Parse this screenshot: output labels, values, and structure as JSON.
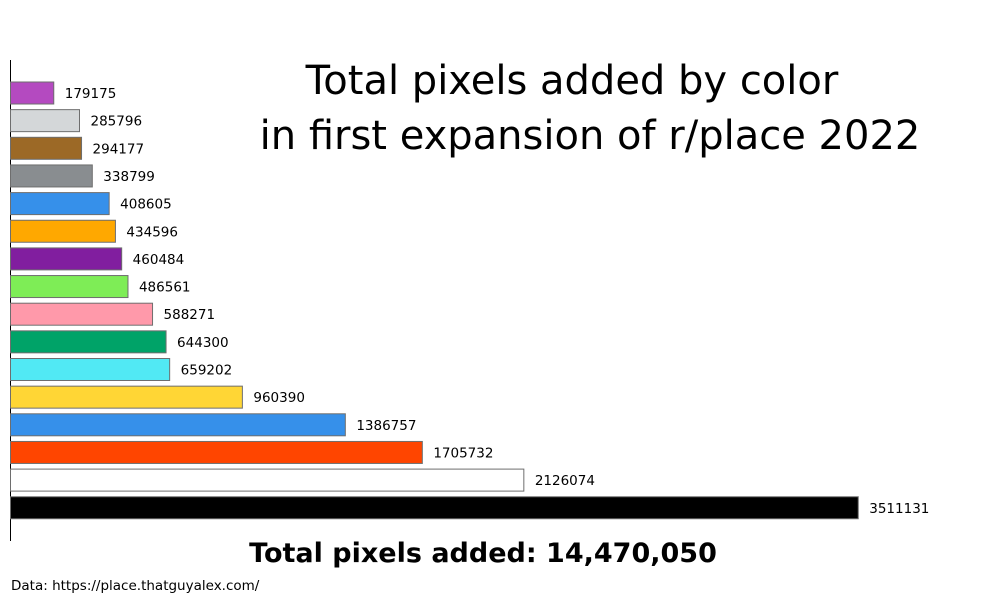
{
  "chart_data": {
    "type": "bar",
    "orientation": "horizontal",
    "title_lines": [
      "Total pixels added by color",
      "in first expansion of r/place 2022"
    ],
    "total_text": "Total pixels added: 14,470,050",
    "source": "Data: https://place.thatguyalex.com/",
    "xlim": [
      0,
      3800000
    ],
    "grid": false,
    "bars": [
      {
        "value": 179175,
        "label": "179175",
        "color": "#b44ac0"
      },
      {
        "value": 285796,
        "label": "285796",
        "color": "#d4d7d9"
      },
      {
        "value": 294177,
        "label": "294177",
        "color": "#9c6926"
      },
      {
        "value": 338799,
        "label": "338799",
        "color": "#898d90"
      },
      {
        "value": 408605,
        "label": "408605",
        "color": "#3690ea"
      },
      {
        "value": 434596,
        "label": "434596",
        "color": "#ffa800"
      },
      {
        "value": 460484,
        "label": "460484",
        "color": "#811e9f"
      },
      {
        "value": 486561,
        "label": "486561",
        "color": "#7eed56"
      },
      {
        "value": 588271,
        "label": "588271",
        "color": "#ff99aa"
      },
      {
        "value": 644300,
        "label": "644300",
        "color": "#00a368"
      },
      {
        "value": 659202,
        "label": "659202",
        "color": "#51e9f4"
      },
      {
        "value": 960390,
        "label": "960390",
        "color": "#ffd635"
      },
      {
        "value": 1386757,
        "label": "1386757",
        "color": "#3690ea"
      },
      {
        "value": 1705732,
        "label": "1705732",
        "color": "#ff4500"
      },
      {
        "value": 2126074,
        "label": "2126074",
        "color": "#ffffff"
      },
      {
        "value": 3511131,
        "label": "3511131",
        "color": "#000000"
      }
    ]
  }
}
